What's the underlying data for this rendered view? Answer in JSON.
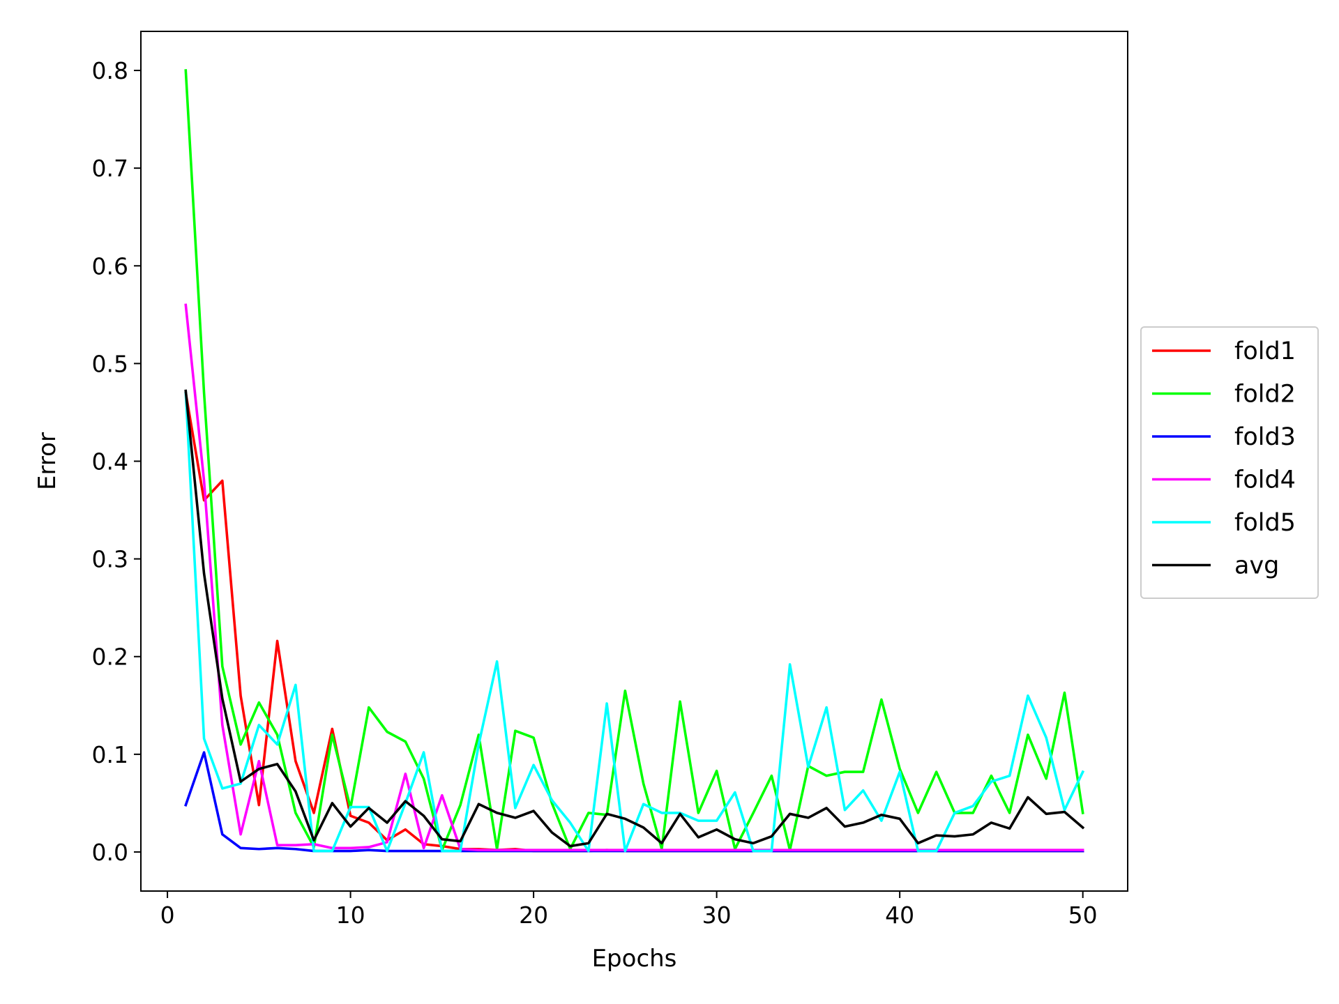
{
  "chart_data": {
    "type": "line",
    "title": "",
    "xlabel": "Epochs",
    "ylabel": "Error",
    "xlim": [
      -1.45,
      52.45
    ],
    "ylim": [
      -0.04,
      0.84
    ],
    "xticks": [
      0,
      10,
      20,
      30,
      40,
      50
    ],
    "yticks": [
      0.0,
      0.1,
      0.2,
      0.3,
      0.4,
      0.5,
      0.6,
      0.7,
      0.8
    ],
    "xtick_labels": [
      "0",
      "10",
      "20",
      "30",
      "40",
      "50"
    ],
    "ytick_labels": [
      "0.0",
      "0.1",
      "0.2",
      "0.3",
      "0.4",
      "0.5",
      "0.6",
      "0.7",
      "0.8"
    ],
    "grid": false,
    "legend_position": "center-right-outside",
    "x": [
      1,
      2,
      3,
      4,
      5,
      6,
      7,
      8,
      9,
      10,
      11,
      12,
      13,
      14,
      15,
      16,
      17,
      18,
      19,
      20,
      21,
      22,
      23,
      24,
      25,
      26,
      27,
      28,
      29,
      30,
      31,
      32,
      33,
      34,
      35,
      36,
      37,
      38,
      39,
      40,
      41,
      42,
      43,
      44,
      45,
      46,
      47,
      48,
      49,
      50
    ],
    "series": [
      {
        "name": "fold1",
        "color": "#ff0000",
        "values": [
          0.47,
          0.36,
          0.38,
          0.16,
          0.048,
          0.216,
          0.093,
          0.04,
          0.126,
          0.037,
          0.03,
          0.012,
          0.023,
          0.008,
          0.006,
          0.003,
          0.003,
          0.002,
          0.003,
          0.001,
          0.001,
          0.001,
          0.001,
          0.002,
          0.001,
          0.001,
          0.001,
          0.001,
          0.001,
          0.001,
          0.001,
          0.001,
          0.001,
          0.001,
          0.001,
          0.001,
          0.001,
          0.001,
          0.001,
          0.001,
          0.001,
          0.001,
          0.001,
          0.001,
          0.001,
          0.001,
          0.001,
          0.001,
          0.001,
          0.001
        ]
      },
      {
        "name": "fold2",
        "color": "#00ff00",
        "values": [
          0.8,
          0.47,
          0.19,
          0.11,
          0.153,
          0.12,
          0.04,
          0.005,
          0.12,
          0.045,
          0.148,
          0.123,
          0.113,
          0.075,
          0.002,
          0.048,
          0.12,
          0.003,
          0.124,
          0.117,
          0.05,
          0.003,
          0.04,
          0.038,
          0.165,
          0.07,
          0.003,
          0.154,
          0.04,
          0.083,
          0.003,
          0.04,
          0.078,
          0.002,
          0.088,
          0.078,
          0.082,
          0.082,
          0.156,
          0.085,
          0.04,
          0.082,
          0.04,
          0.04,
          0.078,
          0.04,
          0.12,
          0.075,
          0.163,
          0.04
        ]
      },
      {
        "name": "fold3",
        "color": "#0000ff",
        "values": [
          0.048,
          0.102,
          0.018,
          0.004,
          0.003,
          0.004,
          0.003,
          0.001,
          0.001,
          0.001,
          0.002,
          0.001,
          0.001,
          0.001,
          0.001,
          0.001,
          0.001,
          0.001,
          0.001,
          0.001,
          0.001,
          0.001,
          0.001,
          0.001,
          0.001,
          0.001,
          0.001,
          0.001,
          0.001,
          0.001,
          0.001,
          0.001,
          0.001,
          0.001,
          0.001,
          0.001,
          0.001,
          0.001,
          0.001,
          0.001,
          0.001,
          0.001,
          0.001,
          0.001,
          0.001,
          0.001,
          0.001,
          0.001,
          0.001,
          0.001
        ]
      },
      {
        "name": "fold4",
        "color": "#ff00ff",
        "values": [
          0.56,
          0.38,
          0.13,
          0.018,
          0.093,
          0.007,
          0.007,
          0.008,
          0.004,
          0.004,
          0.005,
          0.01,
          0.08,
          0.004,
          0.058,
          0.003,
          0.002,
          0.002,
          0.002,
          0.002,
          0.002,
          0.002,
          0.002,
          0.002,
          0.002,
          0.002,
          0.002,
          0.002,
          0.002,
          0.002,
          0.002,
          0.002,
          0.002,
          0.002,
          0.002,
          0.002,
          0.002,
          0.002,
          0.002,
          0.002,
          0.002,
          0.002,
          0.002,
          0.002,
          0.002,
          0.002,
          0.002,
          0.002,
          0.002,
          0.002
        ]
      },
      {
        "name": "fold5",
        "color": "#00ffff",
        "values": [
          0.47,
          0.116,
          0.065,
          0.07,
          0.13,
          0.11,
          0.171,
          0.001,
          0.001,
          0.046,
          0.046,
          0.001,
          0.05,
          0.102,
          0.001,
          0.001,
          0.11,
          0.195,
          0.045,
          0.089,
          0.053,
          0.03,
          0.001,
          0.152,
          0.001,
          0.049,
          0.04,
          0.04,
          0.032,
          0.032,
          0.061,
          0.001,
          0.001,
          0.192,
          0.087,
          0.148,
          0.043,
          0.063,
          0.032,
          0.082,
          0.001,
          0.001,
          0.04,
          0.047,
          0.072,
          0.078,
          0.16,
          0.117,
          0.043,
          0.082
        ]
      },
      {
        "name": "avg",
        "color": "#000000",
        "values": [
          0.472,
          0.285,
          0.157,
          0.072,
          0.085,
          0.09,
          0.062,
          0.012,
          0.05,
          0.026,
          0.045,
          0.03,
          0.052,
          0.037,
          0.013,
          0.011,
          0.049,
          0.04,
          0.035,
          0.042,
          0.02,
          0.006,
          0.009,
          0.039,
          0.034,
          0.025,
          0.009,
          0.039,
          0.015,
          0.023,
          0.013,
          0.009,
          0.016,
          0.039,
          0.035,
          0.045,
          0.026,
          0.03,
          0.038,
          0.034,
          0.009,
          0.017,
          0.016,
          0.018,
          0.03,
          0.024,
          0.056,
          0.039,
          0.041,
          0.025
        ]
      }
    ]
  }
}
